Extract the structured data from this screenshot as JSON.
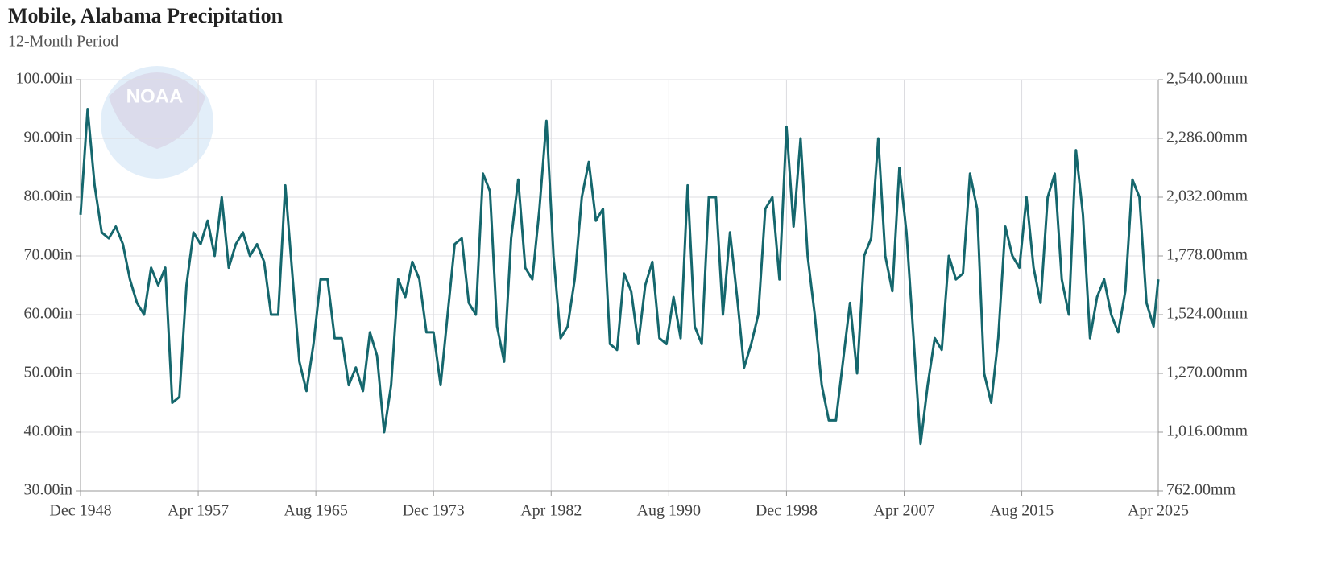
{
  "chart_data": {
    "type": "line",
    "title": "Mobile, Alabama Precipitation",
    "subtitle": "12-Month Period",
    "logo_text": "NOAA",
    "x": [
      "1948-12",
      "1949-06",
      "1949-12",
      "1950-06",
      "1950-12",
      "1951-06",
      "1951-12",
      "1952-06",
      "1952-12",
      "1953-06",
      "1953-12",
      "1954-06",
      "1954-12",
      "1955-06",
      "1955-12",
      "1956-06",
      "1956-12",
      "1957-06",
      "1957-12",
      "1958-06",
      "1958-12",
      "1959-06",
      "1959-12",
      "1960-06",
      "1960-12",
      "1961-06",
      "1961-12",
      "1962-06",
      "1962-12",
      "1963-06",
      "1963-12",
      "1964-06",
      "1964-12",
      "1965-06",
      "1965-12",
      "1966-06",
      "1966-12",
      "1967-06",
      "1967-12",
      "1968-06",
      "1968-12",
      "1969-06",
      "1969-12",
      "1970-06",
      "1970-12",
      "1971-06",
      "1971-12",
      "1972-06",
      "1972-12",
      "1973-06",
      "1973-12",
      "1974-06",
      "1974-12",
      "1975-06",
      "1975-12",
      "1976-06",
      "1976-12",
      "1977-06",
      "1977-12",
      "1978-06",
      "1978-12",
      "1979-06",
      "1979-12",
      "1980-06",
      "1980-12",
      "1981-06",
      "1981-12",
      "1982-06",
      "1982-12",
      "1983-06",
      "1983-12",
      "1984-06",
      "1984-12",
      "1985-06",
      "1985-12",
      "1986-06",
      "1986-12",
      "1987-06",
      "1987-12",
      "1988-06",
      "1988-12",
      "1989-06",
      "1989-12",
      "1990-06",
      "1990-12",
      "1991-06",
      "1991-12",
      "1992-06",
      "1992-12",
      "1993-06",
      "1993-12",
      "1994-06",
      "1994-12",
      "1995-06",
      "1995-12",
      "1996-06",
      "1996-12",
      "1997-06",
      "1997-12",
      "1998-06",
      "1998-12",
      "1999-06",
      "1999-12",
      "2000-06",
      "2000-12",
      "2001-06",
      "2001-12",
      "2002-06",
      "2002-12",
      "2003-06",
      "2003-12",
      "2004-06",
      "2004-12",
      "2005-06",
      "2005-12",
      "2006-06",
      "2006-12",
      "2007-06",
      "2007-12",
      "2008-06",
      "2008-12",
      "2009-06",
      "2009-12",
      "2010-06",
      "2010-12",
      "2011-06",
      "2011-12",
      "2012-06",
      "2012-12",
      "2013-06",
      "2013-12",
      "2014-06",
      "2014-12",
      "2015-06",
      "2015-12",
      "2016-06",
      "2016-12",
      "2017-06",
      "2017-12",
      "2018-06",
      "2018-12",
      "2019-06",
      "2019-12",
      "2020-06",
      "2020-12",
      "2021-06",
      "2021-12",
      "2022-06",
      "2022-12",
      "2023-06",
      "2023-12",
      "2024-06",
      "2024-12",
      "2025-04"
    ],
    "series": [
      {
        "color": "#15676d",
        "values": [
          77,
          95,
          82,
          74,
          73,
          75,
          72,
          66,
          62,
          60,
          68,
          65,
          68,
          45,
          46,
          65,
          74,
          72,
          76,
          70,
          80,
          68,
          72,
          74,
          70,
          72,
          69,
          60,
          60,
          82,
          67,
          52,
          47,
          55,
          66,
          66,
          56,
          56,
          48,
          51,
          47,
          57,
          53,
          40,
          48,
          66,
          63,
          69,
          66,
          57,
          57,
          48,
          60,
          72,
          73,
          62,
          60,
          84,
          81,
          58,
          52,
          73,
          83,
          68,
          66,
          78,
          93,
          70,
          56,
          58,
          66,
          80,
          86,
          76,
          78,
          55,
          54,
          67,
          64,
          55,
          65,
          69,
          56,
          55,
          63,
          56,
          82,
          58,
          55,
          80,
          80,
          60,
          74,
          63,
          51,
          55,
          60,
          78,
          80,
          66,
          92,
          75,
          90,
          70,
          60,
          48,
          42,
          42,
          52,
          62,
          50,
          70,
          73,
          90,
          70,
          64,
          85,
          74,
          56,
          38,
          48,
          56,
          54,
          70,
          66,
          67,
          84,
          78,
          50,
          45,
          56,
          75,
          70,
          68,
          80,
          68,
          62,
          80,
          84,
          66,
          60,
          88,
          77,
          56,
          63,
          66,
          60,
          57,
          64,
          83,
          80,
          62,
          58,
          66
        ]
      }
    ],
    "xlim": [
      "1948-12",
      "2025-04"
    ],
    "xticks": [
      {
        "value": "1948-12",
        "label": "Dec 1948"
      },
      {
        "value": "1957-04",
        "label": "Apr 1957"
      },
      {
        "value": "1965-08",
        "label": "Aug 1965"
      },
      {
        "value": "1973-12",
        "label": "Dec 1973"
      },
      {
        "value": "1982-04",
        "label": "Apr 1982"
      },
      {
        "value": "1990-08",
        "label": "Aug 1990"
      },
      {
        "value": "1998-12",
        "label": "Dec 1998"
      },
      {
        "value": "2007-04",
        "label": "Apr 2007"
      },
      {
        "value": "2015-08",
        "label": "Aug 2015"
      },
      {
        "value": "2025-04",
        "label": "Apr 2025"
      }
    ],
    "ylim": [
      30,
      100
    ],
    "yticks": [
      {
        "value": 30,
        "label": "30.00in"
      },
      {
        "value": 40,
        "label": "40.00in"
      },
      {
        "value": 50,
        "label": "50.00in"
      },
      {
        "value": 60,
        "label": "60.00in"
      },
      {
        "value": 70,
        "label": "70.00in"
      },
      {
        "value": 80,
        "label": "80.00in"
      },
      {
        "value": 90,
        "label": "90.00in"
      },
      {
        "value": 100,
        "label": "100.00in"
      }
    ],
    "y2lim": [
      762,
      2540
    ],
    "y2ticks": [
      {
        "value": 762,
        "label": "762.00mm"
      },
      {
        "value": 1016,
        "label": "1,016.00mm"
      },
      {
        "value": 1270,
        "label": "1,270.00mm"
      },
      {
        "value": 1524,
        "label": "1,524.00mm"
      },
      {
        "value": 1778,
        "label": "1,778.00mm"
      },
      {
        "value": 2032,
        "label": "2,032.00mm"
      },
      {
        "value": 2286,
        "label": "2,286.00mm"
      },
      {
        "value": 2540,
        "label": "2,540.00mm"
      }
    ],
    "grid": true
  }
}
